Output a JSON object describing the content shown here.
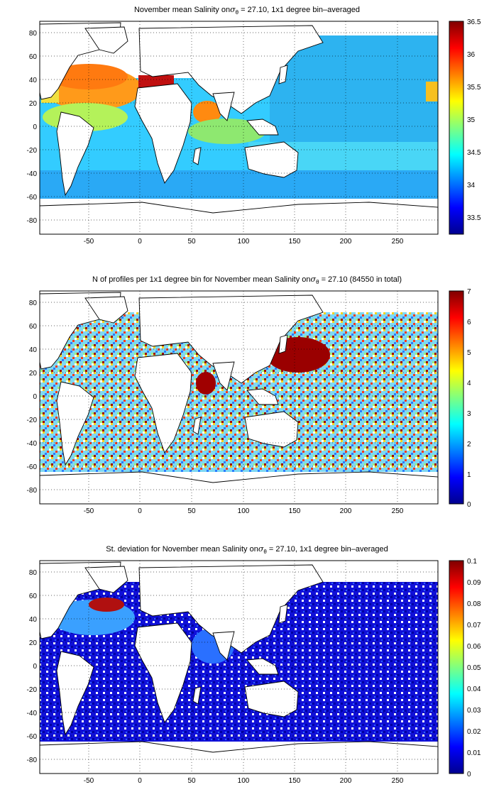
{
  "panels": [
    {
      "id": "salinity",
      "title_pre": "November mean Salinity on",
      "title_sigma": "σ",
      "title_sub": "θ",
      "title_post": " = 27.10, 1x1 degree bin–averaged",
      "colorbar_ticks": [
        "36.5",
        "36",
        "35.5",
        "35",
        "34.5",
        "34",
        "33.5"
      ],
      "colorbar_range": [
        33.3,
        36.5
      ],
      "palette": "jet"
    },
    {
      "id": "profiles",
      "title_pre": "N of profiles per 1x1 degree bin for November mean Salinity on",
      "title_sigma": "σ",
      "title_sub": "θ",
      "title_post": " = 27.10 (84550 in total)",
      "colorbar_ticks": [
        "7",
        "6",
        "5",
        "4",
        "3",
        "2",
        "1",
        "0"
      ],
      "colorbar_range": [
        0,
        7
      ],
      "palette": "jet"
    },
    {
      "id": "stdev",
      "title_pre": "St. deviation for November mean Salinity on",
      "title_sigma": "σ",
      "title_sub": "θ",
      "title_post": " = 27.10, 1x1 degree bin–averaged",
      "colorbar_ticks": [
        "0.1",
        "0.09",
        "0.08",
        "0.07",
        "0.06",
        "0.05",
        "0.04",
        "0.03",
        "0.02",
        "0.01",
        "0"
      ],
      "colorbar_range": [
        0,
        0.1
      ],
      "palette": "jet"
    }
  ],
  "axes": {
    "x_ticks": [
      "-50",
      "0",
      "50",
      "100",
      "150",
      "200",
      "250"
    ],
    "y_ticks": [
      "80",
      "60",
      "40",
      "20",
      "0",
      "-20",
      "-40",
      "-60",
      "-80"
    ],
    "x_range": [
      -95,
      290
    ],
    "y_range": [
      -90,
      90
    ],
    "grid": "dotted"
  }
}
